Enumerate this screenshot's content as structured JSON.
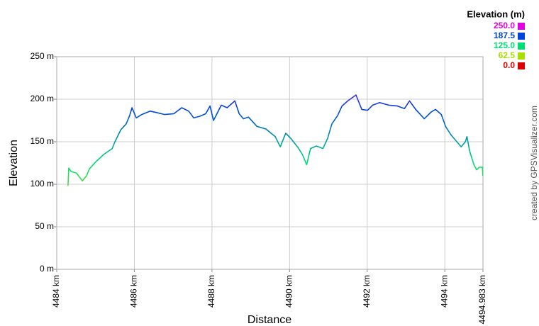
{
  "chart_data": {
    "type": "line",
    "x_label": "Distance",
    "y_label": "Elevation",
    "legend_title": "Elevation (m)",
    "credit": "created by GPSVisualizer.com",
    "xlim": [
      4484,
      4494.983
    ],
    "ylim": [
      0,
      250
    ],
    "xticks": [
      {
        "value": 4484,
        "label": "4484 km"
      },
      {
        "value": 4486,
        "label": "4486 km"
      },
      {
        "value": 4488,
        "label": "4488 km"
      },
      {
        "value": 4490,
        "label": "4490 km"
      },
      {
        "value": 4492,
        "label": "4492 km"
      },
      {
        "value": 4494,
        "label": "4494 km"
      },
      {
        "value": 4494.983,
        "label": "4494.983 km"
      }
    ],
    "yticks": [
      {
        "value": 0,
        "label": "0 m"
      },
      {
        "value": 50,
        "label": "50 m"
      },
      {
        "value": 100,
        "label": "100 m"
      },
      {
        "value": 150,
        "label": "150 m"
      },
      {
        "value": 200,
        "label": "200 m"
      },
      {
        "value": 250,
        "label": "250 m"
      }
    ],
    "grid": true,
    "legend_position": "top-right",
    "color_scale": [
      {
        "value": 250,
        "label": "250.0",
        "color": "#e000e0"
      },
      {
        "value": 187.5,
        "label": "187.5",
        "color": "#0044dd"
      },
      {
        "value": 125,
        "label": "125.0",
        "color": "#00dd77"
      },
      {
        "value": 62.5,
        "label": "62.5",
        "color": "#aadd00"
      },
      {
        "value": 0,
        "label": "0.0",
        "color": "#dd0000"
      }
    ],
    "x": [
      4484.29,
      4484.31,
      4484.37,
      4484.51,
      4484.66,
      4484.77,
      4484.84,
      4485.02,
      4485.21,
      4485.43,
      4485.5,
      4485.65,
      4485.79,
      4485.88,
      4485.94,
      4486.05,
      4486.19,
      4486.41,
      4486.6,
      4486.78,
      4487.02,
      4487.22,
      4487.4,
      4487.53,
      4487.69,
      4487.84,
      4487.95,
      4488.04,
      4488.24,
      4488.39,
      4488.59,
      4488.7,
      4488.81,
      4488.94,
      4489.16,
      4489.39,
      4489.63,
      4489.76,
      4489.9,
      4490.03,
      4490.22,
      4490.33,
      4490.44,
      4490.54,
      4490.69,
      4490.86,
      4490.98,
      4491.09,
      4491.24,
      4491.35,
      4491.5,
      4491.71,
      4491.86,
      4492.01,
      4492.14,
      4492.32,
      4492.56,
      4492.78,
      4492.96,
      4493.09,
      4493.25,
      4493.47,
      4493.65,
      4493.76,
      4493.91,
      4494.02,
      4494.16,
      4494.31,
      4494.42,
      4494.53,
      4494.57,
      4494.64,
      4494.75,
      4494.82,
      4494.89,
      4494.97,
      4494.98
    ],
    "values": [
      98,
      119,
      115,
      113,
      104,
      110,
      118,
      127,
      135,
      142,
      150,
      164,
      171,
      181,
      190,
      178,
      182,
      186,
      184,
      182,
      183,
      190,
      186,
      178,
      180,
      183,
      192,
      175,
      193,
      190,
      198,
      183,
      177,
      179,
      168,
      165,
      156,
      144,
      160,
      154,
      143,
      135,
      123,
      142,
      145,
      142,
      154,
      171,
      181,
      192,
      198,
      205,
      188,
      187,
      193,
      196,
      193,
      192,
      189,
      198,
      188,
      177,
      185,
      188,
      182,
      168,
      158,
      150,
      144,
      150,
      156,
      139,
      123,
      117,
      120,
      120,
      110
    ]
  }
}
